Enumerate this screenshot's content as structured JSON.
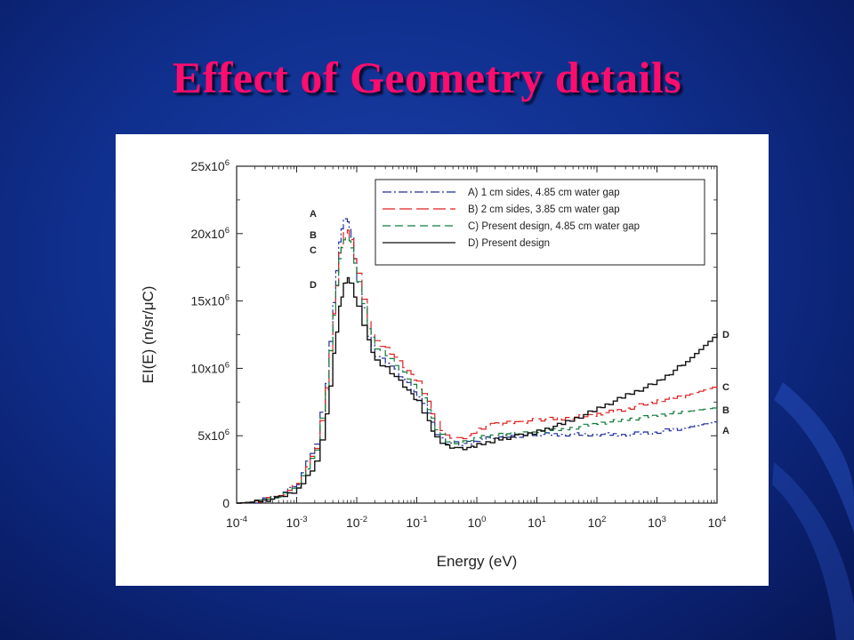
{
  "slide": {
    "title": "Effect of Geometry details",
    "colors": {
      "title": "#ff0d6e",
      "background": "#10308f"
    }
  },
  "chart_data": {
    "type": "line",
    "step": true,
    "xscale": "log",
    "xlim": [
      0.0001,
      10000
    ],
    "ylim": [
      0,
      25000000
    ],
    "xlabel": "Energy (eV)",
    "ylabel": "EI(E) (n/sr/μC)",
    "xticks": [
      {
        "value": 0.0001,
        "base": "10",
        "exp": "-4"
      },
      {
        "value": 0.001,
        "base": "10",
        "exp": "-3"
      },
      {
        "value": 0.01,
        "base": "10",
        "exp": "-2"
      },
      {
        "value": 0.1,
        "base": "10",
        "exp": "-1"
      },
      {
        "value": 1,
        "base": "10",
        "exp": "0"
      },
      {
        "value": 10,
        "base": "10",
        "exp": "1"
      },
      {
        "value": 100,
        "base": "10",
        "exp": "2"
      },
      {
        "value": 1000,
        "base": "10",
        "exp": "3"
      },
      {
        "value": 10000,
        "base": "10",
        "exp": "4"
      }
    ],
    "yticks": [
      {
        "value": 0,
        "base": "0",
        "exp": ""
      },
      {
        "value": 5000000,
        "base": "5x10",
        "exp": "6"
      },
      {
        "value": 10000000,
        "base": "10x10",
        "exp": "6"
      },
      {
        "value": 15000000,
        "base": "15x10",
        "exp": "6"
      },
      {
        "value": 20000000,
        "base": "20x10",
        "exp": "6"
      },
      {
        "value": 25000000,
        "base": "25x10",
        "exp": "6"
      }
    ],
    "legend_position": "top-right",
    "grid": false,
    "series": [
      {
        "name": "A) 1 cm sides, 4.85 cm water gap",
        "marker": "A",
        "color": "#1f2f9a",
        "dash": "10,3,2,3",
        "x": [
          0.0001,
          0.0002,
          0.0005,
          0.001,
          0.002,
          0.003,
          0.004,
          0.005,
          0.006,
          0.007,
          0.008,
          0.01,
          0.015,
          0.02,
          0.03,
          0.05,
          0.08,
          0.1,
          0.15,
          0.2,
          0.3,
          0.5,
          0.8,
          1,
          2,
          5,
          10,
          30,
          100,
          300,
          1000,
          3000,
          10000
        ],
        "y": [
          0,
          100000,
          600000,
          1500000,
          4500000,
          9000000,
          15000000,
          19500000,
          21200000,
          21000000,
          19800000,
          16500000,
          12500000,
          11000000,
          10500000,
          9500000,
          8500000,
          8000000,
          6800000,
          5200000,
          4500000,
          4400000,
          4500000,
          4700000,
          4900000,
          5000000,
          5100000,
          5100000,
          5100000,
          5100000,
          5300000,
          5600000,
          6100000
        ]
      },
      {
        "name": "B) 2 cm sides, 3.85 cm water gap",
        "marker": "B",
        "color": "#e02020",
        "dash": "14,5",
        "x": [
          0.0001,
          0.0002,
          0.0005,
          0.001,
          0.002,
          0.003,
          0.004,
          0.005,
          0.006,
          0.007,
          0.008,
          0.01,
          0.015,
          0.02,
          0.03,
          0.05,
          0.08,
          0.1,
          0.15,
          0.2,
          0.3,
          0.5,
          0.8,
          1,
          2,
          5,
          10,
          30,
          100,
          300,
          1000,
          3000,
          10000
        ],
        "y": [
          0,
          100000,
          500000,
          1400000,
          4000000,
          8500000,
          14000000,
          18500000,
          20000000,
          20200000,
          19500000,
          17000000,
          13500000,
          12000000,
          11500000,
          10500000,
          9500000,
          9000000,
          7500000,
          6000000,
          5000000,
          4800000,
          5100000,
          5500000,
          5900000,
          6000000,
          6200000,
          6300000,
          6600000,
          7000000,
          7600000,
          8000000,
          8700000
        ]
      },
      {
        "name": "C) Present design, 4.85 cm water gap",
        "marker": "C",
        "color": "#137a3a",
        "dash": "9,5",
        "x": [
          0.0001,
          0.0002,
          0.0005,
          0.001,
          0.002,
          0.003,
          0.004,
          0.005,
          0.006,
          0.007,
          0.008,
          0.01,
          0.015,
          0.02,
          0.03,
          0.05,
          0.08,
          0.1,
          0.15,
          0.2,
          0.3,
          0.5,
          0.8,
          1,
          2,
          5,
          10,
          30,
          100,
          300,
          1000,
          3000,
          10000
        ],
        "y": [
          0,
          100000,
          500000,
          1300000,
          4000000,
          8500000,
          14000000,
          18200000,
          19600000,
          19800000,
          19000000,
          16500000,
          13000000,
          11500000,
          11000000,
          10000000,
          9000000,
          8500000,
          7000000,
          5500000,
          4600000,
          4500000,
          4700000,
          4900000,
          5100000,
          5200000,
          5300000,
          5500000,
          5900000,
          6200000,
          6500000,
          6800000,
          7100000
        ]
      },
      {
        "name": "D) Present design",
        "marker": "D",
        "color": "#111111",
        "dash": "",
        "x": [
          0.0001,
          0.0002,
          0.0005,
          0.001,
          0.002,
          0.003,
          0.004,
          0.005,
          0.006,
          0.007,
          0.008,
          0.01,
          0.015,
          0.02,
          0.03,
          0.05,
          0.08,
          0.1,
          0.15,
          0.2,
          0.3,
          0.5,
          0.8,
          1,
          2,
          5,
          10,
          30,
          100,
          300,
          1000,
          3000,
          10000
        ],
        "y": [
          0,
          100000,
          400000,
          1000000,
          3000000,
          6500000,
          11000000,
          14500000,
          16200000,
          16600000,
          16200000,
          14500000,
          12000000,
          10500000,
          10000000,
          9000000,
          8000000,
          7500000,
          6000000,
          4800000,
          4200000,
          4000000,
          4100000,
          4300000,
          4700000,
          5000000,
          5300000,
          6000000,
          7000000,
          8000000,
          9000000,
          10500000,
          12600000
        ]
      }
    ]
  }
}
